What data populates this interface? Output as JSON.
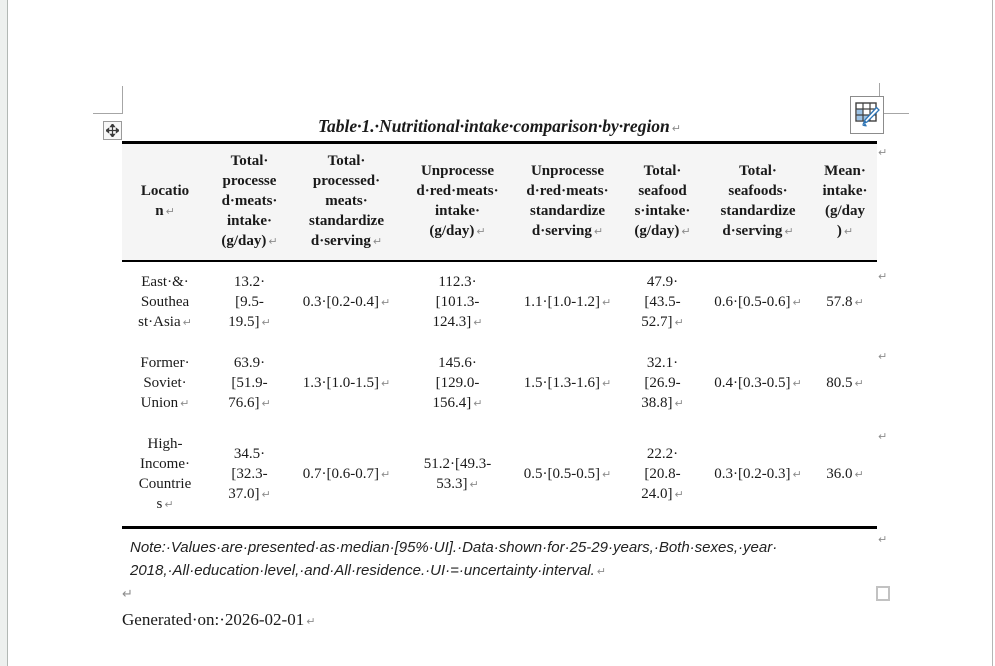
{
  "title": {
    "text": "Table 1. Nutritional intake comparison by region"
  },
  "table": {
    "columns": [
      {
        "id": "location",
        "lines": [
          "Locatio",
          "n"
        ]
      },
      {
        "id": "total-processed-meats-intake",
        "lines": [
          "Total ",
          "processe",
          "d meats ",
          "intake ",
          "(g/day)"
        ]
      },
      {
        "id": "total-processed-meats-serving",
        "lines": [
          "Total ",
          "processed ",
          "meats ",
          "standardize",
          "d serving"
        ]
      },
      {
        "id": "unprocessed-red-meats-intake",
        "lines": [
          "Unprocesse",
          "d red meats ",
          "intake ",
          "(g/day)"
        ]
      },
      {
        "id": "unprocessed-red-meats-serving",
        "lines": [
          "Unprocesse",
          "d red meats ",
          "standardize",
          "d serving"
        ]
      },
      {
        "id": "total-seafoods-intake",
        "lines": [
          "Total ",
          "seafood",
          "s intake ",
          "(g/day)"
        ]
      },
      {
        "id": "total-seafoods-serving",
        "lines": [
          "Total ",
          "seafoods ",
          "standardize",
          "d serving"
        ]
      },
      {
        "id": "mean-intake",
        "lines": [
          "Mean ",
          "intake ",
          "(g/day",
          ")"
        ]
      }
    ],
    "rows": [
      {
        "cells": [
          [
            "East & ",
            "Southea",
            "st Asia"
          ],
          [
            "13.2 ",
            "[9.5-",
            "19.5]"
          ],
          [
            "0.3 [0.2-0.4]"
          ],
          [
            "112.3 ",
            "[101.3-",
            "124.3]"
          ],
          [
            "1.1 [1.0-1.2]"
          ],
          [
            "47.9 ",
            "[43.5-",
            "52.7]"
          ],
          [
            "0.6 [0.5-0.6]"
          ],
          [
            "57.8"
          ]
        ]
      },
      {
        "cells": [
          [
            "Former ",
            "Soviet ",
            "Union"
          ],
          [
            "63.9 ",
            "[51.9-",
            "76.6]"
          ],
          [
            "1.3 [1.0-1.5]"
          ],
          [
            "145.6 ",
            "[129.0-",
            "156.4]"
          ],
          [
            "1.5 [1.3-1.6]"
          ],
          [
            "32.1 ",
            "[26.9-",
            "38.8]"
          ],
          [
            "0.4 [0.3-0.5]"
          ],
          [
            "80.5"
          ]
        ]
      },
      {
        "cells": [
          [
            "High-",
            "Income ",
            "Countrie",
            "s"
          ],
          [
            "34.5 ",
            "[32.3-",
            "37.0]"
          ],
          [
            "0.7 [0.6-0.7]"
          ],
          [
            "51.2 [49.3-",
            "53.3]"
          ],
          [
            "0.5 [0.5-0.5]"
          ],
          [
            "22.2 ",
            "[20.8-",
            "24.0]"
          ],
          [
            "0.3 [0.2-0.3]"
          ],
          [
            "36.0"
          ]
        ]
      }
    ]
  },
  "note": {
    "lines": [
      "Note: Values are presented as median [95% UI]. Data shown for 25-29 years, Both sexes, year ",
      "2018, All education level, and All residence. UI = uncertainty interval."
    ]
  },
  "footer": {
    "generated": "Generated on: 2026-02-01"
  },
  "icons": {
    "paragraph_mark": "↵",
    "space_dot": "·",
    "move_handle": "four-way-move-cross",
    "table_styles": "table-grid-with-paintbrush",
    "anchor_marker": "empty-square"
  },
  "colors": {
    "header_fill": "#f5f5f5",
    "table_border": "#000000",
    "formatting_marks": "#8c8c8c",
    "icon_blue": "#2e75b6",
    "icon_blue_light": "#9dc3e6"
  }
}
